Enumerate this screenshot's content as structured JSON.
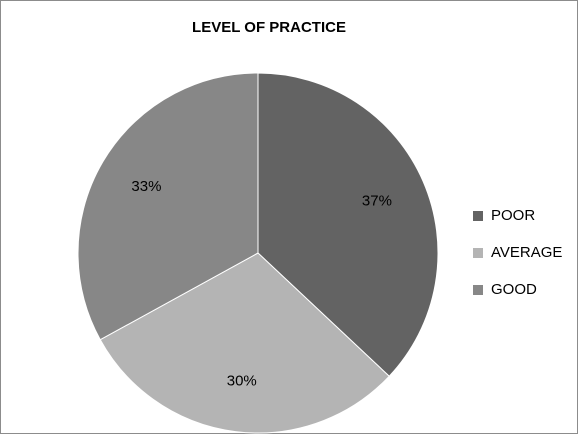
{
  "chart_data": {
    "type": "pie",
    "title": "LEVEL OF PRACTICE",
    "categories": [
      "POOR",
      "AVERAGE",
      "GOOD"
    ],
    "values": [
      37,
      30,
      33
    ],
    "data_labels": [
      "37%",
      "30%",
      "33%"
    ],
    "colors": [
      "#636363",
      "#b4b4b4",
      "#878787"
    ],
    "legend_position": "right",
    "start_angle": "12 o'clock",
    "direction": "clockwise"
  }
}
